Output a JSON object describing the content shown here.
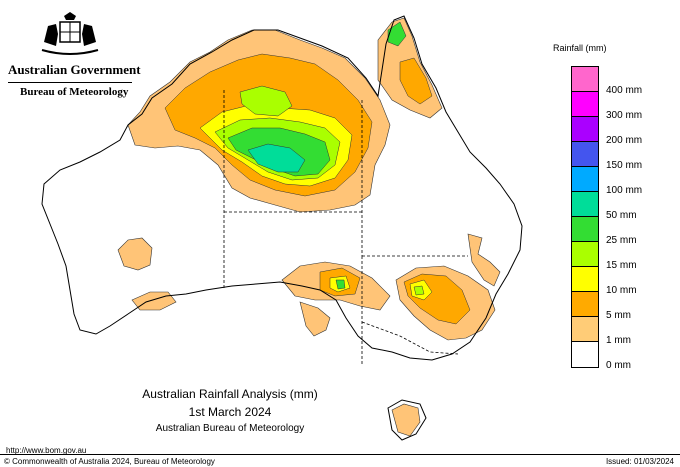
{
  "header": {
    "government": "Australian Government",
    "bureau": "Bureau of Meteorology"
  },
  "legend": {
    "title": "Rainfall (mm)",
    "items": [
      {
        "label": "",
        "color": "#ff66cc"
      },
      {
        "label": "400 mm",
        "color": "#ff00ff"
      },
      {
        "label": "300 mm",
        "color": "#aa00ff"
      },
      {
        "label": "200 mm",
        "color": "#4455ee"
      },
      {
        "label": "150 mm",
        "color": "#00aaff"
      },
      {
        "label": "100 mm",
        "color": "#00dd99"
      },
      {
        "label": "50 mm",
        "color": "#33dd33"
      },
      {
        "label": "25 mm",
        "color": "#aaff00"
      },
      {
        "label": "15 mm",
        "color": "#ffff00"
      },
      {
        "label": "10 mm",
        "color": "#ffaa00"
      },
      {
        "label": "5 mm",
        "color": "#ffcc77"
      },
      {
        "label": "1 mm",
        "color": "#ffffff"
      },
      {
        "label": "0 mm",
        "color": ""
      }
    ]
  },
  "caption": {
    "line1": "Australian Rainfall Analysis (mm)",
    "line2": "1st March 2024",
    "line3": "Australian Bureau of Meteorology"
  },
  "footer": {
    "url": "http://www.bom.gov.au",
    "copyright": "© Commonwealth of Australia 2024, Bureau of Meteorology",
    "issued": "Issued: 01/03/2024"
  },
  "map_colors": {
    "light_orange": "#ffc477",
    "orange": "#ffa800",
    "yellow": "#ffff00",
    "lime": "#aaff00",
    "green": "#33dd33",
    "teal": "#00dd99"
  }
}
